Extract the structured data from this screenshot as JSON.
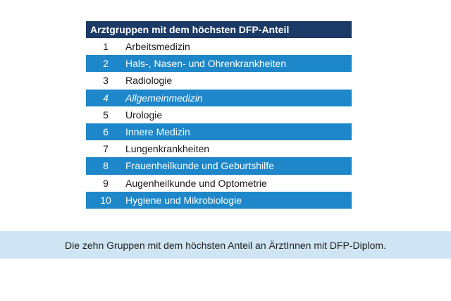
{
  "table": {
    "title": "Arztgruppen mit dem höchsten DFP-Anteil",
    "rows": [
      {
        "rank": "1",
        "name": "Arbeitsmedizin"
      },
      {
        "rank": "2",
        "name": "Hals-, Nasen- und Ohrenkrankheiten"
      },
      {
        "rank": "3",
        "name": "Radiologie"
      },
      {
        "rank": "4",
        "name": "Allgemeinmedizin"
      },
      {
        "rank": "5",
        "name": "Urologie"
      },
      {
        "rank": "6",
        "name": "Innere Medizin"
      },
      {
        "rank": "7",
        "name": "Lungenkrankheiten"
      },
      {
        "rank": "8",
        "name": "Frauenheilkunde und Geburtshilfe"
      },
      {
        "rank": "9",
        "name": "Augenheilkunde und Optometrie"
      },
      {
        "rank": "10",
        "name": "Hygiene und Mikrobiologie"
      }
    ]
  },
  "caption": "Die zehn Gruppen mit dem höchsten Anteil an ÄrztInnen mit DFP-Diplom.",
  "colors": {
    "header_background": "#1b3a66",
    "dark_row_background": "#1e87c9",
    "light_row_background": "#ffffff",
    "caption_background": "#cfe5f4"
  }
}
